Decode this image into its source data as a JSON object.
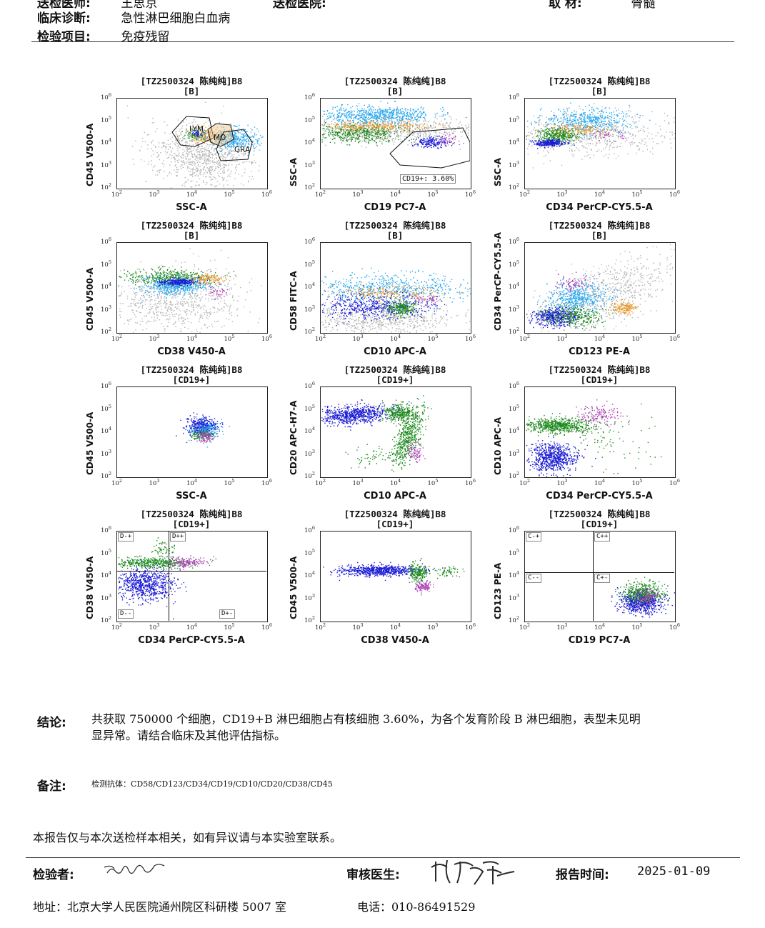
{
  "header": {
    "row0_left_label": "送检医师:",
    "row0_left_value": "王思京",
    "row0_mid_label": "送检医院:",
    "row0_right_label": "取    材:",
    "row0_right_value": "骨髓",
    "diagnosis_label": "临床诊断:",
    "diagnosis_value": "急性淋巴细胞白血病",
    "item_label": "检验项目:",
    "item_value": "免疫残留"
  },
  "colors": {
    "gray": "#b4b4b4",
    "blue": "#1a1ad6",
    "lightblue": "#29a8f0",
    "green": "#1e8a1e",
    "orange": "#e8962a",
    "magenta": "#b040b8"
  },
  "plots": [
    {
      "title": "[TZ2500324 陈纯纯]B8",
      "gate": "[B]",
      "xlabel": "SSC-A",
      "ylabel": "CD45 V500-A"
    },
    {
      "title": "[TZ2500324 陈纯纯]B8",
      "gate": "[B]",
      "xlabel": "CD19 PC7-A",
      "ylabel": "SSC-A"
    },
    {
      "title": "[TZ2500324 陈纯纯]B8",
      "gate": "[B]",
      "xlabel": "CD34 PerCP-CY5.5-A",
      "ylabel": "SSC-A"
    },
    {
      "title": "[TZ2500324 陈纯纯]B8",
      "gate": "[B]",
      "xlabel": "CD38 V450-A",
      "ylabel": "CD45 V500-A"
    },
    {
      "title": "[TZ2500324 陈纯纯]B8",
      "gate": "[B]",
      "xlabel": "CD10 APC-A",
      "ylabel": "CD58 FITC-A"
    },
    {
      "title": "[TZ2500324 陈纯纯]B8",
      "gate": "[B]",
      "xlabel": "CD123 PE-A",
      "ylabel": "CD34 PerCP-CY5.5-A"
    },
    {
      "title": "[TZ2500324 陈纯纯]B8",
      "gate": "[CD19+]",
      "xlabel": "SSC-A",
      "ylabel": "CD45 V500-A"
    },
    {
      "title": "[TZ2500324 陈纯纯]B8",
      "gate": "[CD19+]",
      "xlabel": "CD10 APC-A",
      "ylabel": "CD20 APC-H7-A"
    },
    {
      "title": "[TZ2500324 陈纯纯]B8",
      "gate": "[CD19+]",
      "xlabel": "CD34 PerCP-CY5.5-A",
      "ylabel": "CD10 APC-A"
    },
    {
      "title": "[TZ2500324 陈纯纯]B8",
      "gate": "[CD19+]",
      "xlabel": "CD34 PerCP-CY5.5-A",
      "ylabel": "CD38 V450-A"
    },
    {
      "title": "[TZ2500324 陈纯纯]B8",
      "gate": "[CD19+]",
      "xlabel": "CD38 V450-A",
      "ylabel": "CD45 V500-A"
    },
    {
      "title": "[TZ2500324 陈纯纯]B8",
      "gate": "[CD19+]",
      "xlabel": "CD19 PC7-A",
      "ylabel": "CD123 PE-A"
    }
  ],
  "ticks": {
    "x": [
      "10",
      "10",
      "10",
      "10",
      "10"
    ],
    "x_exp": [
      "2",
      "3",
      "4",
      "5",
      "6"
    ],
    "y": [
      "10",
      "10",
      "10",
      "10",
      "10"
    ],
    "y_exp": [
      "2",
      "3",
      "4",
      "5",
      "6"
    ]
  },
  "gates": {
    "lym": "LYM",
    "mo": "MO",
    "gra": "GRA",
    "cd19_pct": "CD19+: 3.60%"
  },
  "quadrants": {
    "p10": [
      "D-+",
      "D++",
      "D--",
      "D+-"
    ],
    "p12": [
      "C-+",
      "C++",
      "C--",
      "C+-"
    ]
  },
  "conclusion": {
    "label": "结论:",
    "line1": "共获取 750000 个细胞，CD19+B 淋巴细胞占有核细胞 3.60%，为各个发育阶段 B 淋巴细胞，表型未见明",
    "line2": "显异常。请结合临床及其他评估指标。"
  },
  "remark": {
    "label": "备注:",
    "text": "检测抗体：CD58/CD123/CD34/CD19/CD10/CD20/CD38/CD45"
  },
  "disclaimer": "本报告仅与本次送检样本相关，如有异议请与本实验室联系。",
  "footer": {
    "tester_label": "检验者:",
    "reviewer_label": "审核医生:",
    "time_label": "报告时间:",
    "time_value": "2025-01-09",
    "address": "地址：北京大学人民医院通州院区科研楼 5007 室",
    "phone": "电话：010-86491529"
  }
}
